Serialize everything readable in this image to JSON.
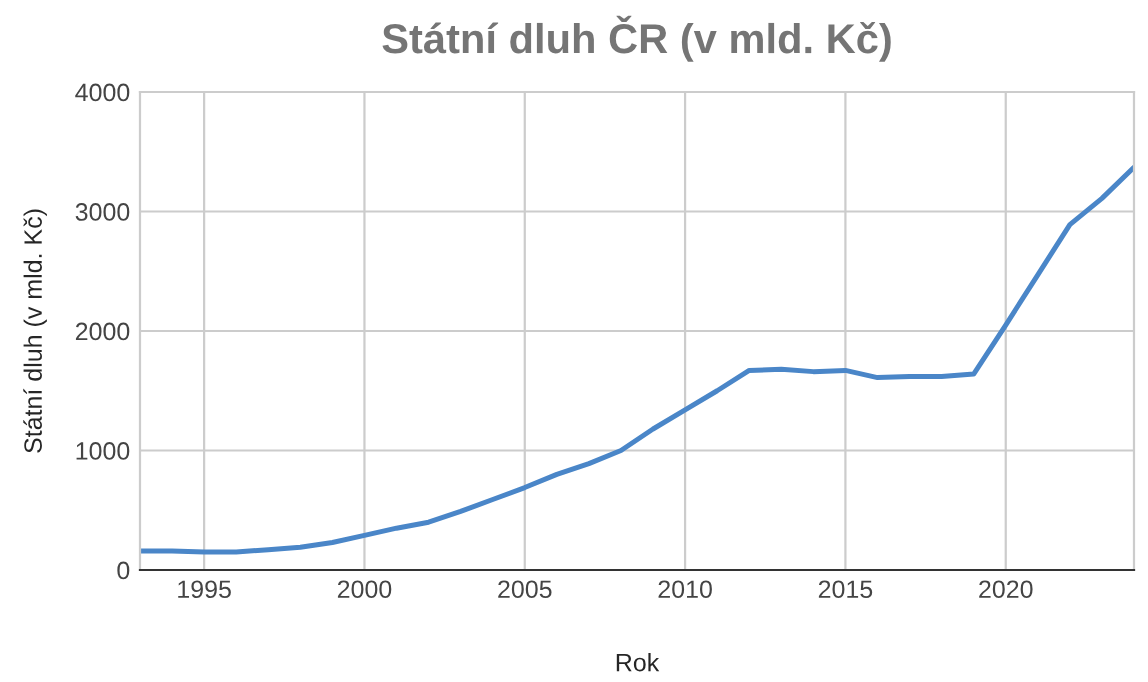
{
  "chart_data": {
    "type": "line",
    "title": "Státní dluh ČR (v mld. Kč)",
    "xlabel": "Rok",
    "ylabel": "Státní dluh (v mld. Kč)",
    "x": [
      1993,
      1994,
      1995,
      1996,
      1997,
      1998,
      1999,
      2000,
      2001,
      2002,
      2003,
      2004,
      2005,
      2006,
      2007,
      2008,
      2009,
      2010,
      2011,
      2012,
      2013,
      2014,
      2015,
      2016,
      2017,
      2018,
      2019,
      2020,
      2021,
      2022,
      2023,
      2024
    ],
    "series": [
      {
        "color": "#4a86c8",
        "values": [
          160,
          160,
          150,
          150,
          170,
          190,
          230,
          290,
          350,
          400,
          490,
          590,
          690,
          800,
          890,
          1000,
          1180,
          1340,
          1500,
          1670,
          1680,
          1660,
          1670,
          1610,
          1620,
          1620,
          1640,
          2050,
          2470,
          2890,
          3110,
          3370
        ]
      }
    ],
    "xlim": [
      1993,
      2024
    ],
    "xticks": [
      1995,
      2000,
      2005,
      2010,
      2015,
      2020
    ],
    "ylim": [
      0,
      4000
    ],
    "yticks": [
      0,
      1000,
      2000,
      3000,
      4000
    ],
    "grid": true,
    "marker": "none",
    "line_style": "solid"
  }
}
